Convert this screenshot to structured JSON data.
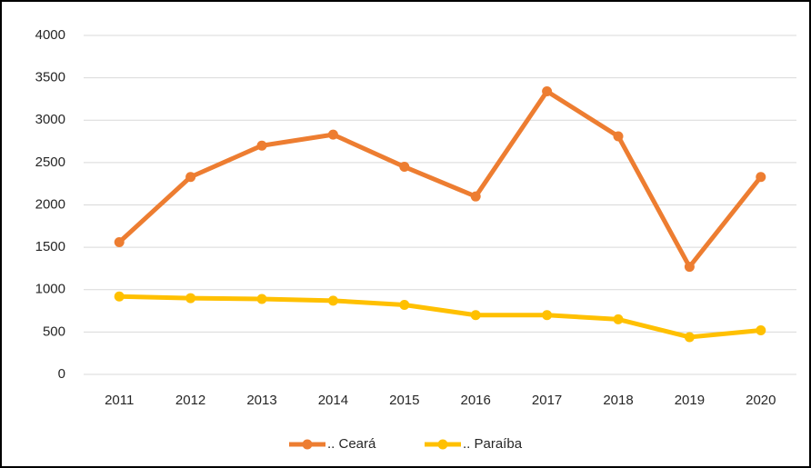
{
  "chart_data": {
    "type": "line",
    "categories": [
      "2011",
      "2012",
      "2013",
      "2014",
      "2015",
      "2016",
      "2017",
      "2018",
      "2019",
      "2020"
    ],
    "series": [
      {
        "name": ".. Ceará",
        "color": "#ed7d31",
        "values": [
          1560,
          2330,
          2700,
          2830,
          2450,
          2100,
          3340,
          2810,
          1270,
          2330
        ]
      },
      {
        "name": ".. Paraíba",
        "color": "#ffc000",
        "values": [
          920,
          900,
          890,
          870,
          820,
          700,
          700,
          650,
          440,
          520
        ]
      }
    ],
    "ylim": [
      0,
      4000
    ],
    "yticks": [
      0,
      500,
      1000,
      1500,
      2000,
      2500,
      3000,
      3500,
      4000
    ],
    "grid": true,
    "legend": "bottom"
  }
}
